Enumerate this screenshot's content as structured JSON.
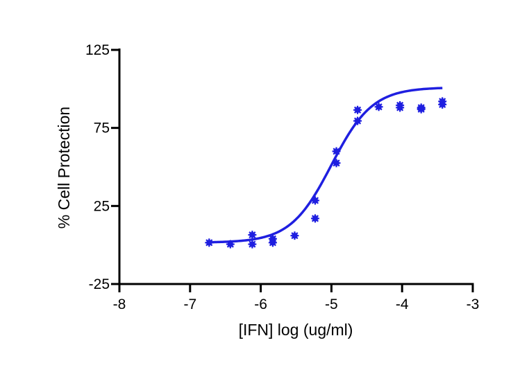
{
  "chart_data": {
    "type": "scatter",
    "title": "",
    "xlabel": "[IFN] log (ug/ml)",
    "ylabel": "% Cell Protection",
    "xlim": [
      -8,
      -3
    ],
    "ylim": [
      -25,
      125
    ],
    "xticks": [
      -8,
      -7,
      -6,
      -5,
      -4,
      -3
    ],
    "yticks": [
      -25,
      25,
      75,
      125
    ],
    "grid": false,
    "colors": {
      "series": "#1f1fe0",
      "axis": "#000000"
    },
    "marker": "asterisk-icon",
    "series": [
      {
        "points": [
          {
            "x": -6.73,
            "y": 1.5
          },
          {
            "x": -6.43,
            "y": 0.5
          },
          {
            "x": -6.12,
            "y": 0.5
          },
          {
            "x": -6.12,
            "y": 6.5
          },
          {
            "x": -5.83,
            "y": 1.5
          },
          {
            "x": -5.83,
            "y": 4
          },
          {
            "x": -5.52,
            "y": 6
          },
          {
            "x": -5.23,
            "y": 17
          },
          {
            "x": -5.23,
            "y": 28.5
          },
          {
            "x": -4.93,
            "y": 52.5
          },
          {
            "x": -4.93,
            "y": 60
          },
          {
            "x": -4.63,
            "y": 79.5
          },
          {
            "x": -4.63,
            "y": 86.5
          },
          {
            "x": -4.33,
            "y": 88.5
          },
          {
            "x": -4.03,
            "y": 88
          },
          {
            "x": -4.03,
            "y": 89.5
          },
          {
            "x": -3.73,
            "y": 87
          },
          {
            "x": -3.73,
            "y": 88
          },
          {
            "x": -3.43,
            "y": 90
          },
          {
            "x": -3.43,
            "y": 92
          }
        ]
      }
    ],
    "fit": {
      "model": "sigmoidal dose-response",
      "bottom": 1.5,
      "top": 101,
      "log_ec50": -5.0,
      "hill_slope": 1.5,
      "x_range": [
        -6.73,
        -3.43
      ]
    }
  }
}
